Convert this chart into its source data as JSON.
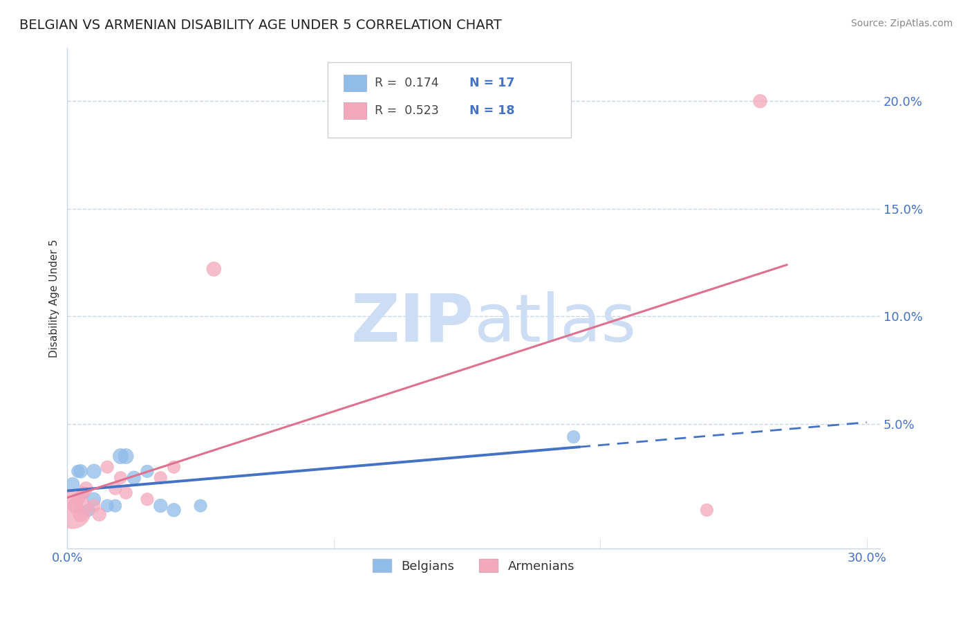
{
  "title": "BELGIAN VS ARMENIAN DISABILITY AGE UNDER 5 CORRELATION CHART",
  "source": "Source: ZipAtlas.com",
  "ylabel": "Disability Age Under 5",
  "xlim": [
    0.0,
    0.305
  ],
  "ylim": [
    -0.008,
    0.225
  ],
  "xticks": [
    0.0,
    0.05,
    0.1,
    0.15,
    0.2,
    0.25,
    0.3
  ],
  "yticks": [
    0.05,
    0.1,
    0.15,
    0.2
  ],
  "ytick_labels": [
    "5.0%",
    "10.0%",
    "15.0%",
    "20.0%"
  ],
  "belgian_R": 0.174,
  "belgian_N": 17,
  "armenian_R": 0.523,
  "armenian_N": 18,
  "belgian_color": "#8fbce8",
  "armenian_color": "#f4a8bc",
  "belgian_line_color": "#4472c4",
  "armenian_line_color": "#e07090",
  "watermark_zip": "ZIP",
  "watermark_atlas": "atlas",
  "watermark_color": "#ccddf4",
  "background_color": "#ffffff",
  "grid_color": "#c8d4e8",
  "belgians_x": [
    0.002,
    0.004,
    0.005,
    0.006,
    0.008,
    0.01,
    0.01,
    0.015,
    0.018,
    0.02,
    0.022,
    0.025,
    0.03,
    0.035,
    0.04,
    0.05,
    0.19
  ],
  "belgians_y": [
    0.022,
    0.028,
    0.028,
    0.018,
    0.01,
    0.028,
    0.015,
    0.012,
    0.012,
    0.035,
    0.035,
    0.025,
    0.028,
    0.012,
    0.01,
    0.012,
    0.044
  ],
  "belgians_size": [
    40,
    35,
    40,
    35,
    35,
    45,
    40,
    35,
    35,
    50,
    50,
    40,
    35,
    40,
    40,
    35,
    35
  ],
  "armenians_x": [
    0.002,
    0.003,
    0.004,
    0.005,
    0.006,
    0.007,
    0.01,
    0.012,
    0.015,
    0.018,
    0.02,
    0.022,
    0.03,
    0.035,
    0.04,
    0.055,
    0.24,
    0.26
  ],
  "armenians_y": [
    0.01,
    0.012,
    0.015,
    0.008,
    0.018,
    0.02,
    0.012,
    0.008,
    0.03,
    0.02,
    0.025,
    0.018,
    0.015,
    0.025,
    0.03,
    0.122,
    0.01,
    0.2
  ],
  "armenians_size": [
    300,
    50,
    40,
    50,
    35,
    40,
    35,
    40,
    35,
    35,
    35,
    35,
    35,
    35,
    35,
    45,
    35,
    40
  ],
  "bel_line_x_solid_end": 0.192,
  "bel_line_x_dash_end": 0.3,
  "arm_line_x_end": 0.27
}
